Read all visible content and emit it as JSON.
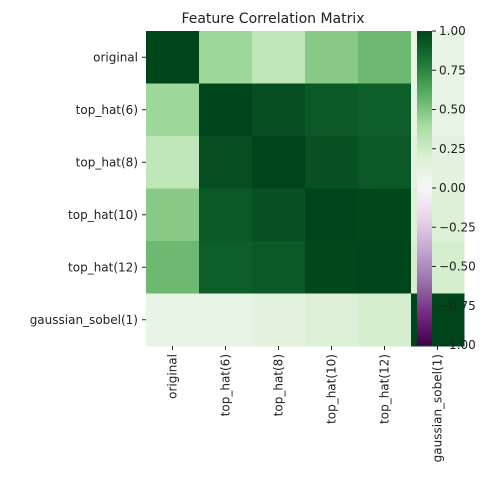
{
  "chart_data": {
    "type": "heatmap",
    "title": "Feature Correlation Matrix",
    "xlabel": "",
    "ylabel": "",
    "row_labels": [
      "original",
      "top_hat(6)",
      "top_hat(8)",
      "top_hat(10)",
      "top_hat(12)",
      "gaussian_sobel(1)"
    ],
    "col_labels": [
      "original",
      "top_hat(6)",
      "top_hat(8)",
      "top_hat(10)",
      "top_hat(12)",
      "gaussian_sobel(1)"
    ],
    "values": [
      [
        1.0,
        0.42,
        0.3,
        0.48,
        0.55,
        0.1
      ],
      [
        0.42,
        1.0,
        0.96,
        0.92,
        0.9,
        0.1
      ],
      [
        0.3,
        0.96,
        1.0,
        0.95,
        0.92,
        0.13
      ],
      [
        0.48,
        0.92,
        0.95,
        1.0,
        0.99,
        0.17
      ],
      [
        0.55,
        0.9,
        0.92,
        0.99,
        1.0,
        0.22
      ],
      [
        0.1,
        0.1,
        0.13,
        0.17,
        0.22,
        1.0
      ]
    ],
    "colormap": "PRGn",
    "vmin": -1.0,
    "vmax": 1.0,
    "colorbar_ticks": [
      1.0,
      0.75,
      0.5,
      0.25,
      0.0,
      -0.25,
      -0.5,
      -0.75,
      -1.0
    ],
    "colorbar_tick_labels": [
      "1.00",
      "0.75",
      "0.50",
      "0.25",
      "0.00",
      "−0.25",
      "−0.50",
      "−0.75",
      "−1.00"
    ],
    "grid": false,
    "legend": "colorbar-right"
  }
}
